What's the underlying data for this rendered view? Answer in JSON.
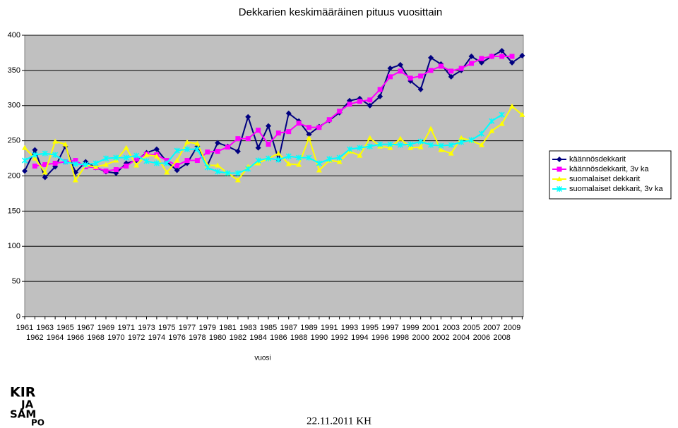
{
  "chart_data": {
    "type": "line",
    "title": "Dekkarien keskimääräinen pituus vuosittain",
    "xlabel": "vuosi",
    "categories": [
      "1961",
      "1962",
      "1963",
      "1964",
      "1965",
      "1966",
      "1967",
      "1968",
      "1969",
      "1970",
      "1971",
      "1972",
      "1973",
      "1974",
      "1975",
      "1976",
      "1977",
      "1978",
      "1979",
      "1980",
      "1981",
      "1982",
      "1983",
      "1984",
      "1985",
      "1986",
      "1987",
      "1988",
      "1989",
      "1990",
      "1991",
      "1992",
      "1993",
      "1994",
      "1995",
      "1996",
      "1997",
      "1998",
      "1999",
      "2000",
      "2001",
      "2002",
      "2003",
      "2004",
      "2005",
      "2006",
      "2007",
      "2008",
      "2009",
      null
    ],
    "series": [
      {
        "name": "käännösdekkarit",
        "color": "#000080",
        "marker": "diamond",
        "values": [
          207,
          237,
          198,
          213,
          242,
          205,
          220,
          212,
          206,
          204,
          218,
          222,
          233,
          238,
          220,
          208,
          218,
          242,
          215,
          247,
          242,
          235,
          284,
          240,
          271,
          223,
          289,
          278,
          259,
          270,
          279,
          290,
          307,
          310,
          300,
          313,
          353,
          358,
          335,
          323,
          368,
          359,
          341,
          350,
          370,
          361,
          370,
          378,
          361,
          371
        ]
      },
      {
        "name": "käännösdekkarit, 3v ka",
        "color": "#ff00ff",
        "marker": "square",
        "values": [
          null,
          214,
          216,
          218,
          220,
          222,
          213,
          212,
          207,
          209,
          214,
          224,
          231,
          230,
          222,
          215,
          222,
          222,
          234,
          235,
          241,
          253,
          253,
          265,
          245,
          261,
          263,
          275,
          269,
          269,
          280,
          292,
          302,
          306,
          308,
          323,
          341,
          349,
          339,
          342,
          350,
          356,
          349,
          353,
          360,
          367,
          370,
          370,
          370,
          null
        ]
      },
      {
        "name": "suomalaiset dekkarit",
        "color": "#ffff00",
        "marker": "triangle",
        "values": [
          240,
          225,
          205,
          249,
          245,
          194,
          215,
          213,
          216,
          222,
          240,
          215,
          230,
          228,
          205,
          222,
          248,
          246,
          215,
          215,
          204,
          194,
          213,
          218,
          225,
          232,
          217,
          216,
          254,
          208,
          222,
          220,
          235,
          229,
          254,
          242,
          240,
          253,
          240,
          241,
          267,
          237,
          232,
          254,
          250,
          244,
          264,
          274,
          299,
          287
        ]
      },
      {
        "name": "suomalaiset dekkarit, 3v ka",
        "color": "#00ffff",
        "marker": "cross",
        "values": [
          222,
          230,
          232,
          230,
          220,
          217,
          216,
          218,
          225,
          226,
          226,
          229,
          221,
          218,
          218,
          236,
          238,
          238,
          212,
          206,
          204,
          204,
          210,
          222,
          225,
          223,
          228,
          226,
          226,
          218,
          224,
          226,
          238,
          240,
          242,
          245,
          245,
          244,
          245,
          249,
          244,
          243,
          244,
          248,
          251,
          260,
          278,
          287,
          null,
          null
        ]
      }
    ],
    "ylim": [
      0,
      400
    ],
    "yticks": [
      0,
      50,
      100,
      150,
      200,
      250,
      300,
      350,
      400
    ],
    "grid": true,
    "legend": "right"
  },
  "logo": [
    "KIR",
    "JA",
    "SAM",
    "PO"
  ],
  "footer": "22.11.2011 KH"
}
